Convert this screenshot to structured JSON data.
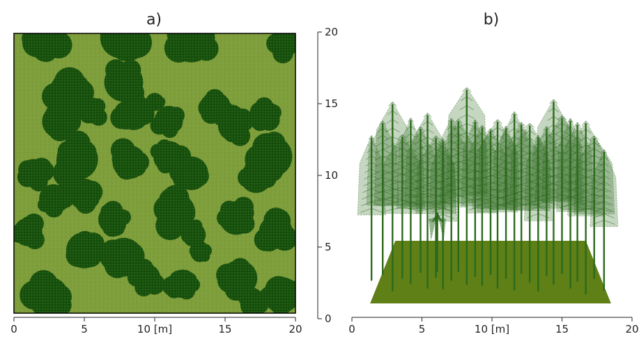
{
  "figure": {
    "panels": [
      {
        "id": "a",
        "title": "a)"
      },
      {
        "id": "b",
        "title": "b)"
      }
    ]
  },
  "colors": {
    "ground": "#7e9d3b",
    "ground_light": "#8aab47",
    "canopy": "#17500d",
    "canopy_dark": "#0f3b08",
    "stem": "#2b6a1b",
    "ground_plane": "#5f7f17",
    "border": "#000000",
    "axis": "#222222"
  },
  "chart_data": [
    {
      "type": "heatmap",
      "title": "a)",
      "description": "Top view of canopy cover (dark) over ground (light green)",
      "xlabel": "[m]",
      "x_ticks": [
        0,
        5,
        10,
        15,
        20
      ],
      "x_tick_labels": [
        "0",
        "5",
        "10 [m]",
        "15",
        "20"
      ],
      "y_ticks": [
        0,
        5,
        10,
        15,
        20
      ],
      "y_tick_labels": [
        "0",
        "5",
        "10",
        "15",
        "20"
      ],
      "y_axis_side": "right",
      "xlim": [
        0,
        20
      ],
      "ylim": [
        0,
        20
      ],
      "crowns": [
        {
          "x": 2.2,
          "y": 19.7,
          "r": 1.6
        },
        {
          "x": 7.6,
          "y": 19.7,
          "r": 1.6
        },
        {
          "x": 12.6,
          "y": 19.5,
          "r": 1.7
        },
        {
          "x": 19.2,
          "y": 19.3,
          "r": 1.1
        },
        {
          "x": 4.0,
          "y": 15.8,
          "r": 1.6
        },
        {
          "x": 7.8,
          "y": 16.5,
          "r": 1.5
        },
        {
          "x": 3.2,
          "y": 13.7,
          "r": 1.3
        },
        {
          "x": 5.5,
          "y": 14.5,
          "r": 1.0
        },
        {
          "x": 8.5,
          "y": 14.2,
          "r": 1.2
        },
        {
          "x": 10.0,
          "y": 15.1,
          "r": 0.7
        },
        {
          "x": 11.0,
          "y": 13.8,
          "r": 1.1
        },
        {
          "x": 14.3,
          "y": 14.7,
          "r": 1.2
        },
        {
          "x": 15.6,
          "y": 13.4,
          "r": 1.2
        },
        {
          "x": 17.8,
          "y": 14.2,
          "r": 1.1
        },
        {
          "x": 4.5,
          "y": 11.0,
          "r": 1.6
        },
        {
          "x": 8.2,
          "y": 10.8,
          "r": 1.3
        },
        {
          "x": 11.0,
          "y": 11.2,
          "r": 1.2
        },
        {
          "x": 12.6,
          "y": 10.0,
          "r": 1.3
        },
        {
          "x": 18.3,
          "y": 11.2,
          "r": 1.6
        },
        {
          "x": 17.2,
          "y": 9.7,
          "r": 1.2
        },
        {
          "x": 1.4,
          "y": 10.0,
          "r": 1.1
        },
        {
          "x": 2.8,
          "y": 8.2,
          "r": 1.1
        },
        {
          "x": 5.0,
          "y": 8.5,
          "r": 1.2
        },
        {
          "x": 7.0,
          "y": 6.7,
          "r": 1.1
        },
        {
          "x": 11.5,
          "y": 7.2,
          "r": 1.5
        },
        {
          "x": 12.8,
          "y": 5.6,
          "r": 0.9
        },
        {
          "x": 15.8,
          "y": 6.8,
          "r": 1.3
        },
        {
          "x": 18.6,
          "y": 5.8,
          "r": 1.3
        },
        {
          "x": 1.0,
          "y": 5.8,
          "r": 1.1
        },
        {
          "x": 5.0,
          "y": 4.5,
          "r": 1.4
        },
        {
          "x": 7.8,
          "y": 4.0,
          "r": 1.5
        },
        {
          "x": 13.2,
          "y": 4.3,
          "r": 0.7
        },
        {
          "x": 9.4,
          "y": 2.5,
          "r": 1.1
        },
        {
          "x": 12.0,
          "y": 2.1,
          "r": 1.1
        },
        {
          "x": 16.0,
          "y": 2.5,
          "r": 1.4
        },
        {
          "x": 19.0,
          "y": 1.3,
          "r": 1.4
        },
        {
          "x": 2.5,
          "y": 1.2,
          "r": 1.5
        },
        {
          "x": 17.0,
          "y": 0.6,
          "r": 1.0
        }
      ]
    },
    {
      "type": "scatter",
      "title": "b)",
      "description": "3D side view of simulated trees on a ground plane",
      "xlabel": "[m]",
      "x_ticks": [
        0,
        5,
        10,
        15,
        20
      ],
      "x_tick_labels": [
        "0",
        "5",
        "10 [m]",
        "15",
        "20"
      ],
      "xlim": [
        0,
        20
      ],
      "trees": [
        {
          "x": 1.4,
          "y_base": 2.4,
          "height": 13.4
        },
        {
          "x": 2.2,
          "y_base": 3.0,
          "height": 14.2
        },
        {
          "x": 2.9,
          "y_base": 1.3,
          "height": 17.5
        },
        {
          "x": 3.6,
          "y_base": 2.6,
          "height": 13.3
        },
        {
          "x": 4.2,
          "y_base": 2.1,
          "height": 15.3
        },
        {
          "x": 4.9,
          "y_base": 3.2,
          "height": 13.5
        },
        {
          "x": 5.4,
          "y_base": 1.6,
          "height": 16.2
        },
        {
          "x": 6.0,
          "y_base": 2.7,
          "height": 13.1
        },
        {
          "x": 6.5,
          "y_base": 1.5,
          "height": 13.9
        },
        {
          "x": 7.1,
          "y_base": 2.4,
          "height": 15.0
        },
        {
          "x": 7.6,
          "y_base": 3.3,
          "height": 14.1
        },
        {
          "x": 8.2,
          "y_base": 2.0,
          "height": 18.2
        },
        {
          "x": 8.8,
          "y_base": 2.8,
          "height": 14.5
        },
        {
          "x": 9.3,
          "y_base": 1.9,
          "height": 14.8
        },
        {
          "x": 9.9,
          "y_base": 3.0,
          "height": 13.5
        },
        {
          "x": 10.4,
          "y_base": 1.6,
          "height": 15.6
        },
        {
          "x": 11.0,
          "y_base": 2.6,
          "height": 14.1
        },
        {
          "x": 11.6,
          "y_base": 1.4,
          "height": 16.5
        },
        {
          "x": 12.1,
          "y_base": 3.1,
          "height": 14.0
        },
        {
          "x": 12.7,
          "y_base": 2.2,
          "height": 14.7
        },
        {
          "x": 13.3,
          "y_base": 1.3,
          "height": 14.4
        },
        {
          "x": 13.9,
          "y_base": 2.9,
          "height": 13.8
        },
        {
          "x": 14.4,
          "y_base": 2.0,
          "height": 17.1
        },
        {
          "x": 15.0,
          "y_base": 3.1,
          "height": 14.6
        },
        {
          "x": 15.6,
          "y_base": 1.6,
          "height": 15.7
        },
        {
          "x": 16.1,
          "y_base": 2.3,
          "height": 14.7
        },
        {
          "x": 16.7,
          "y_base": 1.0,
          "height": 16.0
        },
        {
          "x": 17.3,
          "y_base": 2.6,
          "height": 13.2
        },
        {
          "x": 18.0,
          "y_base": 1.4,
          "height": 13.0
        },
        {
          "x": 6.1,
          "y_base": 3.3,
          "height": 5.5
        }
      ]
    }
  ]
}
